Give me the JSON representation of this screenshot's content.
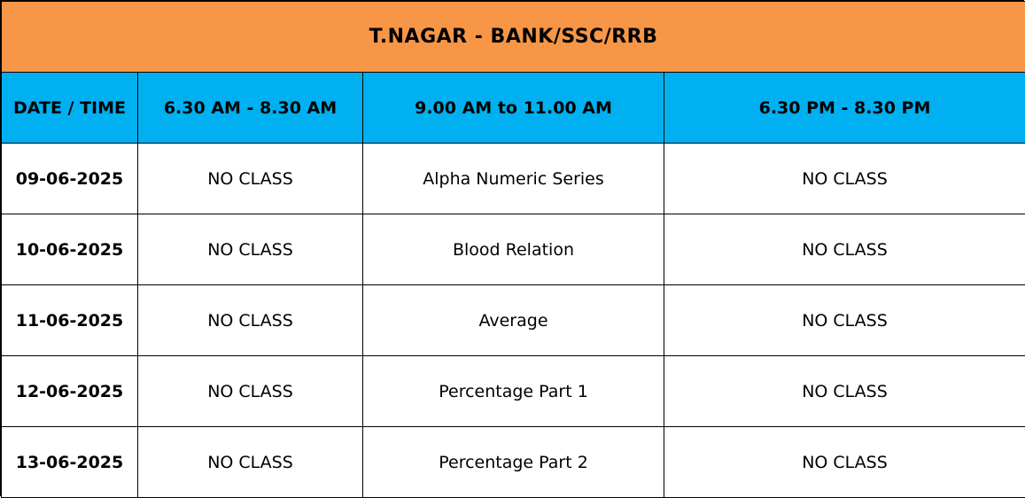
{
  "title": "T.NAGAR - BANK/SSC/RRB",
  "colors": {
    "title_bg": "#F79646",
    "header_bg": "#00B0F0"
  },
  "headers": [
    "DATE / TIME",
    "6.30 AM - 8.30 AM",
    "9.00 AM to 11.00 AM",
    "6.30 PM - 8.30 PM"
  ],
  "rows": [
    {
      "date": "09-06-2025",
      "slot1": "NO CLASS",
      "slot2": "Alpha Numeric Series",
      "slot3": "NO CLASS"
    },
    {
      "date": "10-06-2025",
      "slot1": "NO CLASS",
      "slot2": "Blood Relation",
      "slot3": "NO CLASS"
    },
    {
      "date": "11-06-2025",
      "slot1": "NO CLASS",
      "slot2": "Average",
      "slot3": "NO CLASS"
    },
    {
      "date": "12-06-2025",
      "slot1": "NO CLASS",
      "slot2": "Percentage Part 1",
      "slot3": "NO CLASS"
    },
    {
      "date": "13-06-2025",
      "slot1": "NO CLASS",
      "slot2": "Percentage Part 2",
      "slot3": "NO CLASS"
    }
  ]
}
